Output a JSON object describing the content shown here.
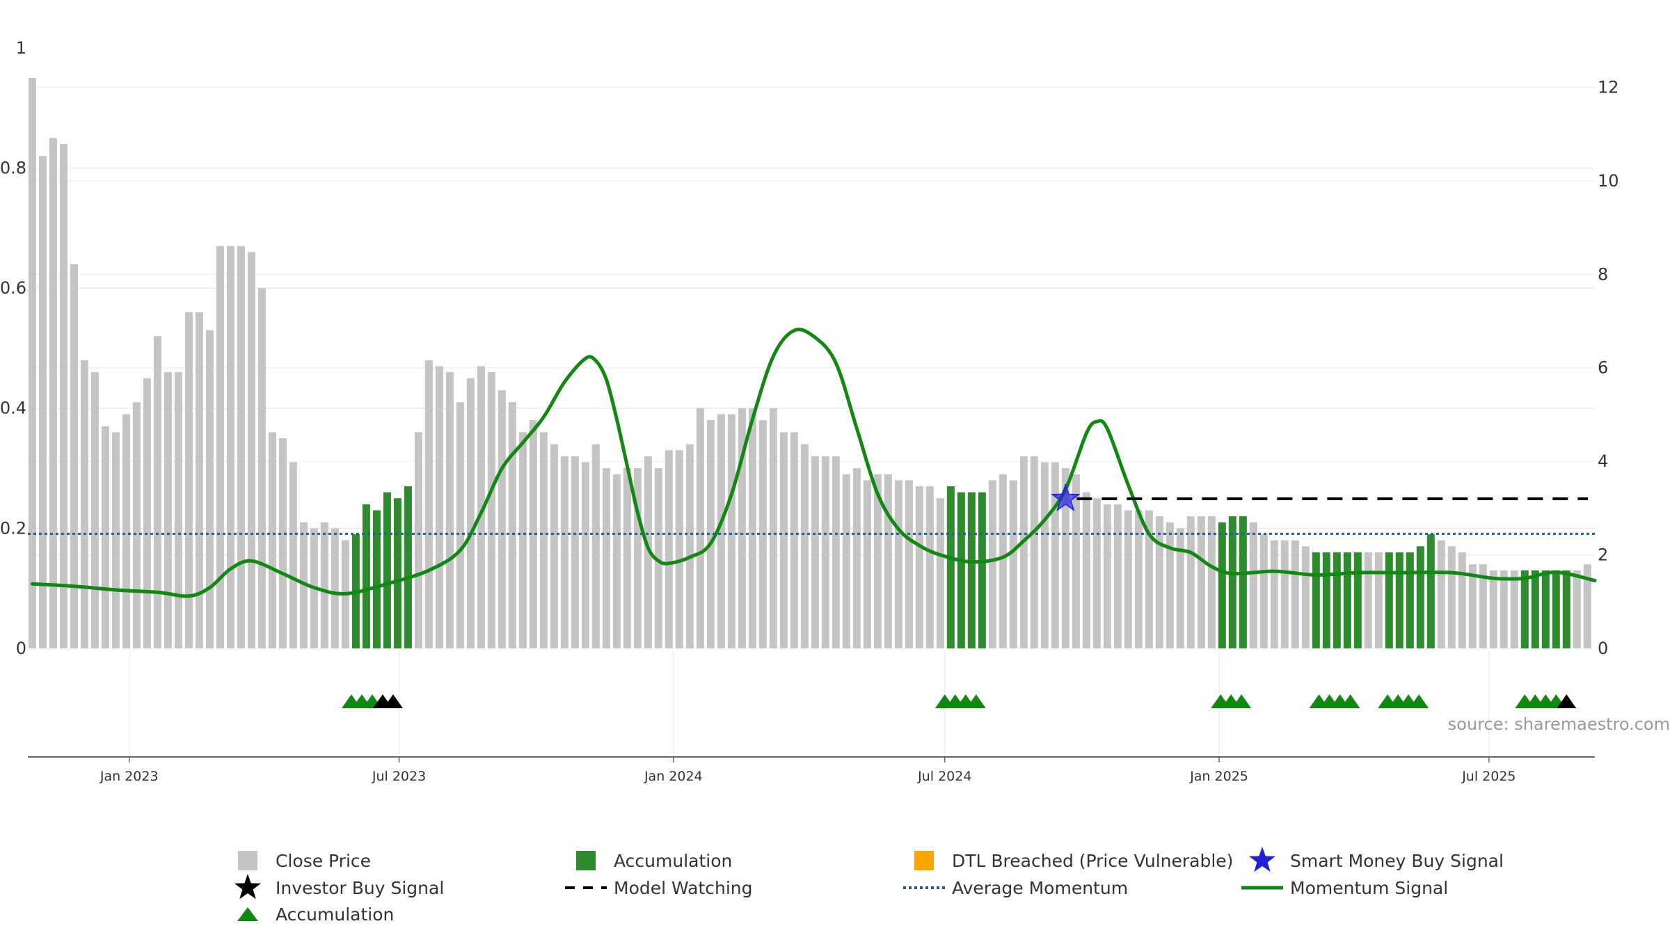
{
  "chart_data": {
    "type": "bar",
    "title": "",
    "subtitle": "",
    "xlabel": "",
    "ylabel": "",
    "source": "source: sharemaestro.com",
    "x_range": [
      "2022-10-25",
      "2025-09-10"
    ],
    "x_ticks": [
      {
        "date": "2023-01-01",
        "label": "Jan 2023"
      },
      {
        "date": "2023-07-01",
        "label": "Jul 2023"
      },
      {
        "date": "2024-01-01",
        "label": "Jan 2024"
      },
      {
        "date": "2024-07-01",
        "label": "Jul 2024"
      },
      {
        "date": "2025-01-01",
        "label": "Jan 2025"
      },
      {
        "date": "2025-07-01",
        "label": "Jul 2025"
      }
    ],
    "left_axis": {
      "ylim": [
        0,
        0.95
      ],
      "ticks": [
        "0",
        "0.2",
        "0.4",
        "0.6",
        "0.8",
        "1"
      ],
      "tick_values": [
        0,
        0.2,
        0.4,
        0.6,
        0.8,
        1.0
      ]
    },
    "right_axis": {
      "ylim": [
        0,
        12.2
      ],
      "ticks": [
        "0",
        "2",
        "4",
        "6",
        "8",
        "10",
        "12"
      ],
      "tick_values": [
        0,
        2,
        4,
        6,
        8,
        10,
        12
      ]
    },
    "grid": true,
    "legend_position": "bottom",
    "colors": {
      "close_price": "#c4c4c4",
      "accumulation": "#2e8b2e",
      "dtl": "#ffa500",
      "smart_money": "#2020dd",
      "investor": "#000000",
      "model_watching": "#000000",
      "average_momentum": "#1f5f99",
      "momentum": "#118811",
      "source_text": "#999999"
    },
    "close_price": [
      {
        "date": "2022-10-28",
        "value": 0.95
      },
      {
        "date": "2022-11-04",
        "value": 0.82
      },
      {
        "date": "2022-11-11",
        "value": 0.85
      },
      {
        "date": "2022-11-18",
        "value": 0.84
      },
      {
        "date": "2022-11-25",
        "value": 0.64
      },
      {
        "date": "2022-12-02",
        "value": 0.48
      },
      {
        "date": "2022-12-09",
        "value": 0.46
      },
      {
        "date": "2022-12-16",
        "value": 0.37
      },
      {
        "date": "2022-12-23",
        "value": 0.36
      },
      {
        "date": "2022-12-30",
        "value": 0.39
      },
      {
        "date": "2023-01-06",
        "value": 0.41
      },
      {
        "date": "2023-01-13",
        "value": 0.45
      },
      {
        "date": "2023-01-20",
        "value": 0.52
      },
      {
        "date": "2023-01-27",
        "value": 0.46
      },
      {
        "date": "2023-02-03",
        "value": 0.46
      },
      {
        "date": "2023-02-10",
        "value": 0.56
      },
      {
        "date": "2023-02-17",
        "value": 0.56
      },
      {
        "date": "2023-02-24",
        "value": 0.53
      },
      {
        "date": "2023-03-03",
        "value": 0.67
      },
      {
        "date": "2023-03-10",
        "value": 0.67
      },
      {
        "date": "2023-03-17",
        "value": 0.67
      },
      {
        "date": "2023-03-24",
        "value": 0.66
      },
      {
        "date": "2023-03-31",
        "value": 0.6
      },
      {
        "date": "2023-04-07",
        "value": 0.36
      },
      {
        "date": "2023-04-14",
        "value": 0.35
      },
      {
        "date": "2023-04-21",
        "value": 0.31
      },
      {
        "date": "2023-04-28",
        "value": 0.21
      },
      {
        "date": "2023-05-05",
        "value": 0.2
      },
      {
        "date": "2023-05-12",
        "value": 0.21
      },
      {
        "date": "2023-05-19",
        "value": 0.2
      },
      {
        "date": "2023-05-26",
        "value": 0.18
      },
      {
        "date": "2023-06-02",
        "value": 0.19
      },
      {
        "date": "2023-06-09",
        "value": 0.24
      },
      {
        "date": "2023-06-16",
        "value": 0.23
      },
      {
        "date": "2023-06-23",
        "value": 0.26
      },
      {
        "date": "2023-06-30",
        "value": 0.25
      },
      {
        "date": "2023-07-07",
        "value": 0.27
      },
      {
        "date": "2023-07-14",
        "value": 0.36
      },
      {
        "date": "2023-07-21",
        "value": 0.48
      },
      {
        "date": "2023-07-28",
        "value": 0.47
      },
      {
        "date": "2023-08-04",
        "value": 0.46
      },
      {
        "date": "2023-08-11",
        "value": 0.41
      },
      {
        "date": "2023-08-18",
        "value": 0.45
      },
      {
        "date": "2023-08-25",
        "value": 0.47
      },
      {
        "date": "2023-09-01",
        "value": 0.46
      },
      {
        "date": "2023-09-08",
        "value": 0.43
      },
      {
        "date": "2023-09-15",
        "value": 0.41
      },
      {
        "date": "2023-09-22",
        "value": 0.36
      },
      {
        "date": "2023-09-29",
        "value": 0.38
      },
      {
        "date": "2023-10-06",
        "value": 0.36
      },
      {
        "date": "2023-10-13",
        "value": 0.34
      },
      {
        "date": "2023-10-20",
        "value": 0.32
      },
      {
        "date": "2023-10-27",
        "value": 0.32
      },
      {
        "date": "2023-11-03",
        "value": 0.31
      },
      {
        "date": "2023-11-10",
        "value": 0.34
      },
      {
        "date": "2023-11-17",
        "value": 0.3
      },
      {
        "date": "2023-11-24",
        "value": 0.29
      },
      {
        "date": "2023-12-01",
        "value": 0.3
      },
      {
        "date": "2023-12-08",
        "value": 0.3
      },
      {
        "date": "2023-12-15",
        "value": 0.32
      },
      {
        "date": "2023-12-22",
        "value": 0.3
      },
      {
        "date": "2023-12-29",
        "value": 0.33
      },
      {
        "date": "2024-01-05",
        "value": 0.33
      },
      {
        "date": "2024-01-12",
        "value": 0.34
      },
      {
        "date": "2024-01-19",
        "value": 0.4
      },
      {
        "date": "2024-01-26",
        "value": 0.38
      },
      {
        "date": "2024-02-02",
        "value": 0.39
      },
      {
        "date": "2024-02-09",
        "value": 0.39
      },
      {
        "date": "2024-02-16",
        "value": 0.4
      },
      {
        "date": "2024-02-23",
        "value": 0.4
      },
      {
        "date": "2024-03-01",
        "value": 0.38
      },
      {
        "date": "2024-03-08",
        "value": 0.4
      },
      {
        "date": "2024-03-15",
        "value": 0.36
      },
      {
        "date": "2024-03-22",
        "value": 0.36
      },
      {
        "date": "2024-03-29",
        "value": 0.34
      },
      {
        "date": "2024-04-05",
        "value": 0.32
      },
      {
        "date": "2024-04-12",
        "value": 0.32
      },
      {
        "date": "2024-04-19",
        "value": 0.32
      },
      {
        "date": "2024-04-26",
        "value": 0.29
      },
      {
        "date": "2024-05-03",
        "value": 0.3
      },
      {
        "date": "2024-05-10",
        "value": 0.28
      },
      {
        "date": "2024-05-17",
        "value": 0.29
      },
      {
        "date": "2024-05-24",
        "value": 0.29
      },
      {
        "date": "2024-05-31",
        "value": 0.28
      },
      {
        "date": "2024-06-07",
        "value": 0.28
      },
      {
        "date": "2024-06-14",
        "value": 0.27
      },
      {
        "date": "2024-06-21",
        "value": 0.27
      },
      {
        "date": "2024-06-28",
        "value": 0.25
      },
      {
        "date": "2024-07-05",
        "value": 0.27
      },
      {
        "date": "2024-07-12",
        "value": 0.26
      },
      {
        "date": "2024-07-19",
        "value": 0.26
      },
      {
        "date": "2024-07-26",
        "value": 0.26
      },
      {
        "date": "2024-08-02",
        "value": 0.28
      },
      {
        "date": "2024-08-09",
        "value": 0.29
      },
      {
        "date": "2024-08-16",
        "value": 0.28
      },
      {
        "date": "2024-08-23",
        "value": 0.32
      },
      {
        "date": "2024-08-30",
        "value": 0.32
      },
      {
        "date": "2024-09-06",
        "value": 0.31
      },
      {
        "date": "2024-09-13",
        "value": 0.31
      },
      {
        "date": "2024-09-20",
        "value": 0.3
      },
      {
        "date": "2024-09-27",
        "value": 0.29
      },
      {
        "date": "2024-10-04",
        "value": 0.26
      },
      {
        "date": "2024-10-11",
        "value": 0.25
      },
      {
        "date": "2024-10-18",
        "value": 0.24
      },
      {
        "date": "2024-10-25",
        "value": 0.24
      },
      {
        "date": "2024-11-01",
        "value": 0.23
      },
      {
        "date": "2024-11-08",
        "value": 0.23
      },
      {
        "date": "2024-11-15",
        "value": 0.23
      },
      {
        "date": "2024-11-22",
        "value": 0.22
      },
      {
        "date": "2024-11-29",
        "value": 0.21
      },
      {
        "date": "2024-12-06",
        "value": 0.2
      },
      {
        "date": "2024-12-13",
        "value": 0.22
      },
      {
        "date": "2024-12-20",
        "value": 0.22
      },
      {
        "date": "2024-12-27",
        "value": 0.22
      },
      {
        "date": "2025-01-03",
        "value": 0.21
      },
      {
        "date": "2025-01-10",
        "value": 0.22
      },
      {
        "date": "2025-01-17",
        "value": 0.22
      },
      {
        "date": "2025-01-24",
        "value": 0.21
      },
      {
        "date": "2025-01-31",
        "value": 0.19
      },
      {
        "date": "2025-02-07",
        "value": 0.18
      },
      {
        "date": "2025-02-14",
        "value": 0.18
      },
      {
        "date": "2025-02-21",
        "value": 0.18
      },
      {
        "date": "2025-02-28",
        "value": 0.17
      },
      {
        "date": "2025-03-07",
        "value": 0.16
      },
      {
        "date": "2025-03-14",
        "value": 0.16
      },
      {
        "date": "2025-03-21",
        "value": 0.16
      },
      {
        "date": "2025-03-28",
        "value": 0.16
      },
      {
        "date": "2025-04-04",
        "value": 0.16
      },
      {
        "date": "2025-04-11",
        "value": 0.16
      },
      {
        "date": "2025-04-18",
        "value": 0.16
      },
      {
        "date": "2025-04-25",
        "value": 0.16
      },
      {
        "date": "2025-05-02",
        "value": 0.16
      },
      {
        "date": "2025-05-09",
        "value": 0.16
      },
      {
        "date": "2025-05-16",
        "value": 0.17
      },
      {
        "date": "2025-05-23",
        "value": 0.19
      },
      {
        "date": "2025-05-30",
        "value": 0.18
      },
      {
        "date": "2025-06-06",
        "value": 0.17
      },
      {
        "date": "2025-06-13",
        "value": 0.16
      },
      {
        "date": "2025-06-20",
        "value": 0.14
      },
      {
        "date": "2025-06-27",
        "value": 0.14
      },
      {
        "date": "2025-07-04",
        "value": 0.13
      },
      {
        "date": "2025-07-11",
        "value": 0.13
      },
      {
        "date": "2025-07-18",
        "value": 0.13
      },
      {
        "date": "2025-07-25",
        "value": 0.13
      },
      {
        "date": "2025-08-01",
        "value": 0.13
      },
      {
        "date": "2025-08-08",
        "value": 0.13
      },
      {
        "date": "2025-08-15",
        "value": 0.13
      },
      {
        "date": "2025-08-22",
        "value": 0.13
      },
      {
        "date": "2025-08-29",
        "value": 0.13
      },
      {
        "date": "2025-09-05",
        "value": 0.14
      }
    ],
    "accumulation_dates": [
      "2023-06-02",
      "2023-06-09",
      "2023-06-16",
      "2023-06-23",
      "2023-06-30",
      "2023-07-07",
      "2024-07-05",
      "2024-07-12",
      "2024-07-19",
      "2024-07-26",
      "2025-01-03",
      "2025-01-10",
      "2025-01-17",
      "2025-03-07",
      "2025-03-14",
      "2025-03-21",
      "2025-03-28",
      "2025-04-04",
      "2025-04-25",
      "2025-05-02",
      "2025-05-09",
      "2025-05-16",
      "2025-05-23",
      "2025-07-25",
      "2025-08-01",
      "2025-08-08",
      "2025-08-15",
      "2025-08-22"
    ],
    "accumulation_markers": [
      "2023-05-30",
      "2023-06-06",
      "2023-06-13",
      "2024-07-01",
      "2024-07-08",
      "2024-07-15",
      "2024-07-22",
      "2025-01-02",
      "2025-01-09",
      "2025-01-16",
      "2025-03-09",
      "2025-03-16",
      "2025-03-23",
      "2025-03-30",
      "2025-04-24",
      "2025-05-01",
      "2025-05-08",
      "2025-05-15",
      "2025-07-25",
      "2025-08-01",
      "2025-08-08",
      "2025-08-15"
    ],
    "investor_buy_markers": [
      "2023-06-20",
      "2023-06-27",
      "2025-08-22"
    ],
    "smart_money_signals": [
      {
        "date": "2024-09-20",
        "value": 3.2
      }
    ],
    "model_watching": {
      "start": "2024-09-20",
      "end": "2025-09-10",
      "value": 3.2
    },
    "average_momentum": 2.45,
    "momentum_signal": [
      {
        "date": "2022-10-28",
        "value": 1.38
      },
      {
        "date": "2022-11-25",
        "value": 1.33
      },
      {
        "date": "2022-12-23",
        "value": 1.25
      },
      {
        "date": "2023-01-20",
        "value": 1.2
      },
      {
        "date": "2023-02-10",
        "value": 1.12
      },
      {
        "date": "2023-02-24",
        "value": 1.3
      },
      {
        "date": "2023-03-10",
        "value": 1.7
      },
      {
        "date": "2023-03-24",
        "value": 1.87
      },
      {
        "date": "2023-04-14",
        "value": 1.6
      },
      {
        "date": "2023-05-05",
        "value": 1.3
      },
      {
        "date": "2023-05-26",
        "value": 1.17
      },
      {
        "date": "2023-06-23",
        "value": 1.38
      },
      {
        "date": "2023-07-21",
        "value": 1.67
      },
      {
        "date": "2023-08-11",
        "value": 2.1
      },
      {
        "date": "2023-08-25",
        "value": 2.9
      },
      {
        "date": "2023-09-08",
        "value": 3.85
      },
      {
        "date": "2023-09-22",
        "value": 4.4
      },
      {
        "date": "2023-10-06",
        "value": 4.95
      },
      {
        "date": "2023-10-20",
        "value": 5.7
      },
      {
        "date": "2023-11-03",
        "value": 6.2
      },
      {
        "date": "2023-11-10",
        "value": 6.15
      },
      {
        "date": "2023-11-17",
        "value": 5.75
      },
      {
        "date": "2023-11-24",
        "value": 4.9
      },
      {
        "date": "2023-12-01",
        "value": 3.9
      },
      {
        "date": "2023-12-08",
        "value": 2.9
      },
      {
        "date": "2023-12-15",
        "value": 2.15
      },
      {
        "date": "2023-12-22",
        "value": 1.87
      },
      {
        "date": "2023-12-29",
        "value": 1.82
      },
      {
        "date": "2024-01-12",
        "value": 1.95
      },
      {
        "date": "2024-01-26",
        "value": 2.25
      },
      {
        "date": "2024-02-09",
        "value": 3.3
      },
      {
        "date": "2024-02-23",
        "value": 4.9
      },
      {
        "date": "2024-03-08",
        "value": 6.25
      },
      {
        "date": "2024-03-22",
        "value": 6.8
      },
      {
        "date": "2024-04-05",
        "value": 6.65
      },
      {
        "date": "2024-04-19",
        "value": 6.1
      },
      {
        "date": "2024-05-03",
        "value": 4.7
      },
      {
        "date": "2024-05-17",
        "value": 3.3
      },
      {
        "date": "2024-05-31",
        "value": 2.55
      },
      {
        "date": "2024-06-14",
        "value": 2.2
      },
      {
        "date": "2024-06-28",
        "value": 2.0
      },
      {
        "date": "2024-07-19",
        "value": 1.85
      },
      {
        "date": "2024-08-09",
        "value": 1.95
      },
      {
        "date": "2024-08-23",
        "value": 2.3
      },
      {
        "date": "2024-09-06",
        "value": 2.75
      },
      {
        "date": "2024-09-20",
        "value": 3.4
      },
      {
        "date": "2024-10-04",
        "value": 4.6
      },
      {
        "date": "2024-10-11",
        "value": 4.85
      },
      {
        "date": "2024-10-18",
        "value": 4.7
      },
      {
        "date": "2024-11-01",
        "value": 3.5
      },
      {
        "date": "2024-11-15",
        "value": 2.45
      },
      {
        "date": "2024-11-29",
        "value": 2.15
      },
      {
        "date": "2024-12-13",
        "value": 2.05
      },
      {
        "date": "2024-12-27",
        "value": 1.75
      },
      {
        "date": "2025-01-10",
        "value": 1.6
      },
      {
        "date": "2025-02-07",
        "value": 1.65
      },
      {
        "date": "2025-03-07",
        "value": 1.57
      },
      {
        "date": "2025-04-04",
        "value": 1.62
      },
      {
        "date": "2025-05-02",
        "value": 1.62
      },
      {
        "date": "2025-06-06",
        "value": 1.62
      },
      {
        "date": "2025-07-04",
        "value": 1.5
      },
      {
        "date": "2025-07-25",
        "value": 1.5
      },
      {
        "date": "2025-08-15",
        "value": 1.63
      },
      {
        "date": "2025-09-10",
        "value": 1.45
      }
    ]
  },
  "legend": [
    {
      "key": "close_price",
      "label": "Close Price",
      "symbol": "square",
      "color": "#c4c4c4"
    },
    {
      "key": "accumulation_bar",
      "label": "Accumulation",
      "symbol": "square",
      "color": "#2e8b2e"
    },
    {
      "key": "dtl",
      "label": "DTL Breached (Price Vulnerable)",
      "symbol": "square",
      "color": "#ffa500"
    },
    {
      "key": "smart_money",
      "label": "Smart Money Buy Signal",
      "symbol": "star",
      "color": "#2020dd"
    },
    {
      "key": "investor",
      "label": "Investor Buy Signal",
      "symbol": "star",
      "color": "#000000"
    },
    {
      "key": "model_watching",
      "label": "Model Watching",
      "symbol": "dash",
      "color": "#000000"
    },
    {
      "key": "average_momentum",
      "label": "Average Momentum",
      "symbol": "dotted",
      "color": "#1f5f99"
    },
    {
      "key": "momentum",
      "label": "Momentum Signal",
      "symbol": "line",
      "color": "#118811"
    },
    {
      "key": "accumulation_marker",
      "label": "Accumulation",
      "symbol": "triangle",
      "color": "#118811"
    }
  ]
}
